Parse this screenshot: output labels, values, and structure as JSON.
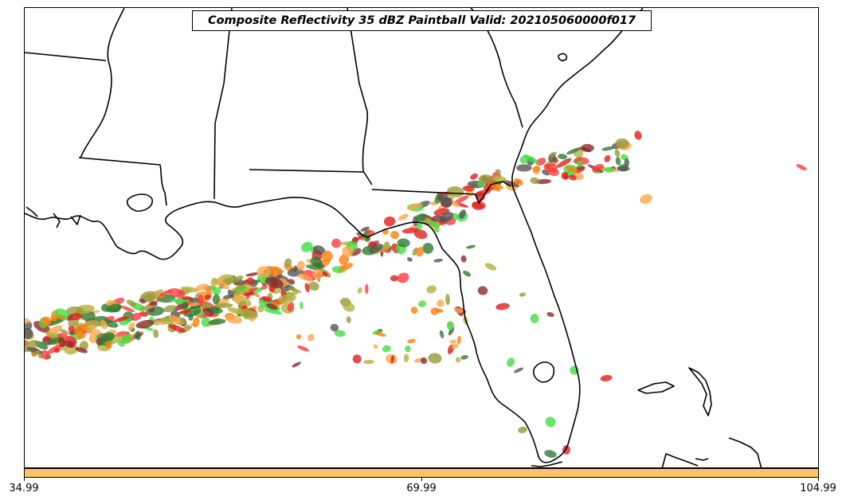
{
  "title": "Composite Reflectivity 35 dBZ Paintball Valid: 202105060000f017",
  "colorbar": {
    "color": "#ffc266",
    "ticks": [
      "34.99",
      "69.99",
      "104.99"
    ]
  },
  "paintball_colors": [
    "#ff3b3b",
    "#ff7f0e",
    "#fca84a",
    "#8b2b2b",
    "#2e7d32",
    "#44dd44",
    "#9a9a3a",
    "#b5b040",
    "#555555",
    "#e01f1f"
  ]
}
